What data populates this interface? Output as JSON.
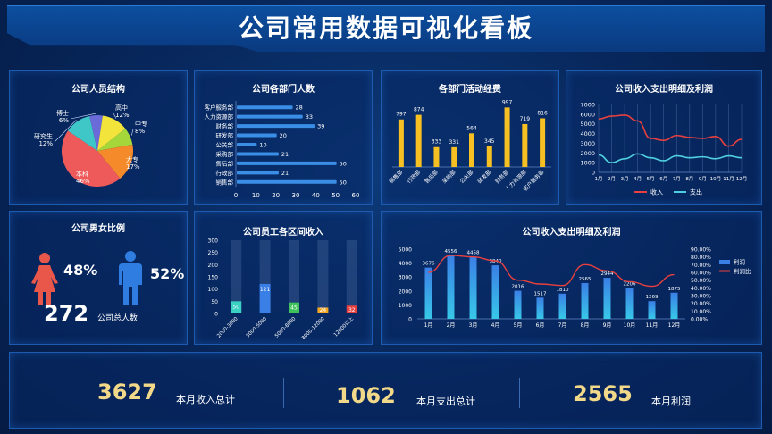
{
  "page": {
    "title": "公司常用数据可视化看板"
  },
  "panels": {
    "structure": {
      "title": "公司人员结构"
    },
    "dept_count": {
      "title": "公司各部门人数"
    },
    "dept_cost": {
      "title": "各部门活动经费"
    },
    "income_line": {
      "title": "公司收入支出明细及利润"
    },
    "gender": {
      "title": "公司男女比例",
      "female_pct": "48%",
      "male_pct": "52%",
      "total": "272",
      "total_label": "公司总人数"
    },
    "salary": {
      "title": "公司员工各区间收入"
    },
    "profit": {
      "title": "公司收入支出明细及利润"
    }
  },
  "stats": [
    {
      "value": "3627",
      "label": "本月收入总计"
    },
    {
      "value": "1062",
      "label": "本月支出总计"
    },
    {
      "value": "2565",
      "label": "本月利润"
    }
  ],
  "colors": {
    "accent_yellow": "#f6c022",
    "bar_blue": "#3a8ee6",
    "line_red": "#e8403e",
    "line_cyan": "#4fd0e0",
    "female": "#e8574a",
    "male": "#2f7de0"
  },
  "icons": [
    "female-icon",
    "male-icon"
  ],
  "chart_data": [
    {
      "id": "structure",
      "type": "pie",
      "labels": [
        "博士",
        "高中",
        "中专",
        "大专",
        "本科",
        "研究生"
      ],
      "pct_labels": [
        "6%",
        "12%",
        "8%",
        "17%",
        "46%",
        "12%"
      ],
      "values": [
        6,
        12,
        8,
        17,
        46,
        12
      ],
      "colors": [
        "#6a6ad8",
        "#f2e43a",
        "#a5d63a",
        "#f58a2a",
        "#ee5a5a",
        "#3fc6c6"
      ]
    },
    {
      "id": "dept_count",
      "type": "bar",
      "orientation": "horizontal",
      "categories": [
        "客户服务部",
        "人力资源部",
        "财务部",
        "研发部",
        "公关部",
        "采购部",
        "售后部",
        "行政部",
        "销售部"
      ],
      "values": [
        28,
        33,
        39,
        20,
        10,
        21,
        50,
        21,
        50
      ],
      "xticks": [
        0,
        10,
        20,
        30,
        40,
        50,
        60
      ],
      "xlim": [
        0,
        60
      ]
    },
    {
      "id": "dept_cost",
      "type": "bar",
      "categories": [
        "销售部",
        "行政部",
        "售后部",
        "采购部",
        "公关部",
        "研发部",
        "财务部",
        "人力资源部",
        "客户服务部"
      ],
      "values": [
        797,
        874,
        333,
        331,
        564,
        345,
        997,
        719,
        816
      ],
      "ylim": [
        0,
        1100
      ]
    },
    {
      "id": "income_line",
      "type": "line",
      "categories": [
        "1月",
        "2月",
        "3月",
        "4月",
        "5月",
        "6月",
        "7月",
        "8月",
        "9月",
        "10月",
        "11月",
        "12月"
      ],
      "yticks": [
        0,
        1000,
        2000,
        3000,
        4000,
        5000,
        6000,
        7000
      ],
      "ylim": [
        0,
        7000
      ],
      "series": [
        {
          "name": "收入",
          "values": [
            5500,
            5800,
            5900,
            5300,
            3500,
            3300,
            3800,
            3600,
            3500,
            3700,
            2700,
            3400
          ]
        },
        {
          "name": "支出",
          "values": [
            1800,
            1000,
            1400,
            1900,
            1500,
            1200,
            1700,
            1500,
            1600,
            1400,
            1700,
            1500
          ]
        }
      ]
    },
    {
      "id": "salary",
      "type": "bar",
      "categories": [
        "2000-3000",
        "3000-5000",
        "5000-8000",
        "8000-12000",
        "12000以上"
      ],
      "values": [
        50,
        121,
        45,
        24,
        32
      ],
      "max": 300,
      "yticks": [
        0,
        50,
        100,
        150,
        200,
        250,
        300
      ],
      "colors": [
        "#3ad1c2",
        "#3a7fe6",
        "#3ec25a",
        "#f5a623",
        "#e8403e"
      ]
    },
    {
      "id": "profit",
      "type": "bar",
      "categories": [
        "1月",
        "2月",
        "3月",
        "4月",
        "5月",
        "6月",
        "7月",
        "8月",
        "9月",
        "10月",
        "11月",
        "12月"
      ],
      "yticks": [
        0,
        1000,
        2000,
        3000,
        4000,
        5000
      ],
      "ylim": [
        0,
        5000
      ],
      "y2ticks": [
        "0.00%",
        "10.00%",
        "20.00%",
        "30.00%",
        "40.00%",
        "50.00%",
        "60.00%",
        "70.00%",
        "80.00%",
        "90.00%"
      ],
      "y2lim": [
        0,
        90
      ],
      "series": [
        {
          "name": "利润",
          "type": "bar",
          "values": [
            3676,
            4556,
            4458,
            3840,
            2016,
            1517,
            1810,
            2565,
            2944,
            2206,
            1269,
            1875
          ]
        },
        {
          "name": "利润比",
          "type": "line",
          "values": [
            60,
            82,
            80,
            75,
            50,
            45,
            43,
            70,
            62,
            48,
            42,
            57
          ]
        }
      ]
    }
  ]
}
